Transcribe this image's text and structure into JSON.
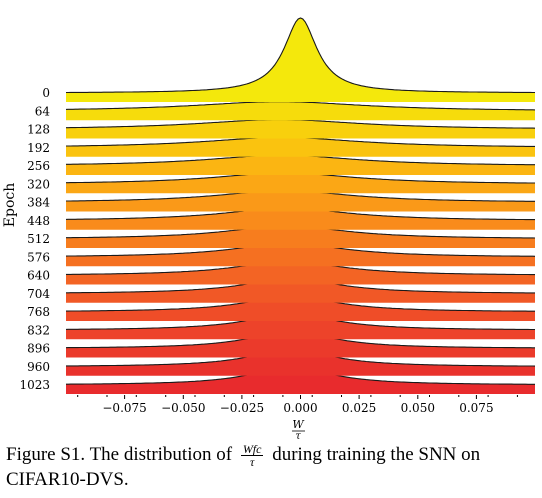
{
  "chart_data": {
    "type": "ridgeline",
    "ylabel": "Epoch",
    "xlabel_num": "W",
    "xlabel_den": "τ",
    "xlim": [
      -0.1,
      0.1
    ],
    "x_ticks": [
      -0.075,
      -0.05,
      -0.025,
      0.0,
      0.025,
      0.05,
      0.075
    ],
    "x_tick_labels": [
      "−0.075",
      "−0.050",
      "−0.025",
      "0.000",
      "0.025",
      "0.050",
      "0.075"
    ],
    "series": [
      {
        "epoch": "0",
        "color": "#f4e80c",
        "center": 0.0,
        "peak": 1.0,
        "width": 0.0085
      },
      {
        "epoch": "64",
        "color": "#f6dc0c",
        "center": -0.009,
        "peak": 0.128,
        "width": 0.045
      },
      {
        "epoch": "128",
        "color": "#f8d00d",
        "center": -0.009,
        "peak": 0.132,
        "width": 0.043
      },
      {
        "epoch": "192",
        "color": "#fac30f",
        "center": -0.008,
        "peak": 0.138,
        "width": 0.041
      },
      {
        "epoch": "256",
        "color": "#fbb512",
        "center": -0.008,
        "peak": 0.145,
        "width": 0.039
      },
      {
        "epoch": "320",
        "color": "#fba715",
        "center": -0.007,
        "peak": 0.152,
        "width": 0.037
      },
      {
        "epoch": "384",
        "color": "#fa9918",
        "center": -0.007,
        "peak": 0.16,
        "width": 0.035
      },
      {
        "epoch": "448",
        "color": "#f98b1b",
        "center": -0.006,
        "peak": 0.168,
        "width": 0.033
      },
      {
        "epoch": "512",
        "color": "#f77d1e",
        "center": -0.006,
        "peak": 0.176,
        "width": 0.031
      },
      {
        "epoch": "576",
        "color": "#f57021",
        "center": -0.005,
        "peak": 0.185,
        "width": 0.029
      },
      {
        "epoch": "640",
        "color": "#f36424",
        "center": -0.005,
        "peak": 0.194,
        "width": 0.027
      },
      {
        "epoch": "704",
        "color": "#f15826",
        "center": -0.004,
        "peak": 0.202,
        "width": 0.025
      },
      {
        "epoch": "768",
        "color": "#ef4d28",
        "center": -0.004,
        "peak": 0.21,
        "width": 0.024
      },
      {
        "epoch": "832",
        "color": "#ed432a",
        "center": -0.004,
        "peak": 0.218,
        "width": 0.023
      },
      {
        "epoch": "896",
        "color": "#eb3a2b",
        "center": -0.004,
        "peak": 0.226,
        "width": 0.022
      },
      {
        "epoch": "960",
        "color": "#e9322c",
        "center": -0.004,
        "peak": 0.234,
        "width": 0.021
      },
      {
        "epoch": "1023",
        "color": "#e82b2d",
        "center": -0.004,
        "peak": 0.24,
        "width": 0.021
      }
    ]
  },
  "caption": {
    "text_before": "Figure S1. The distribution of",
    "frac_num": "Wfc",
    "frac_den": "τ",
    "text_after": "during training the SNN on CIFAR10-DVS."
  }
}
